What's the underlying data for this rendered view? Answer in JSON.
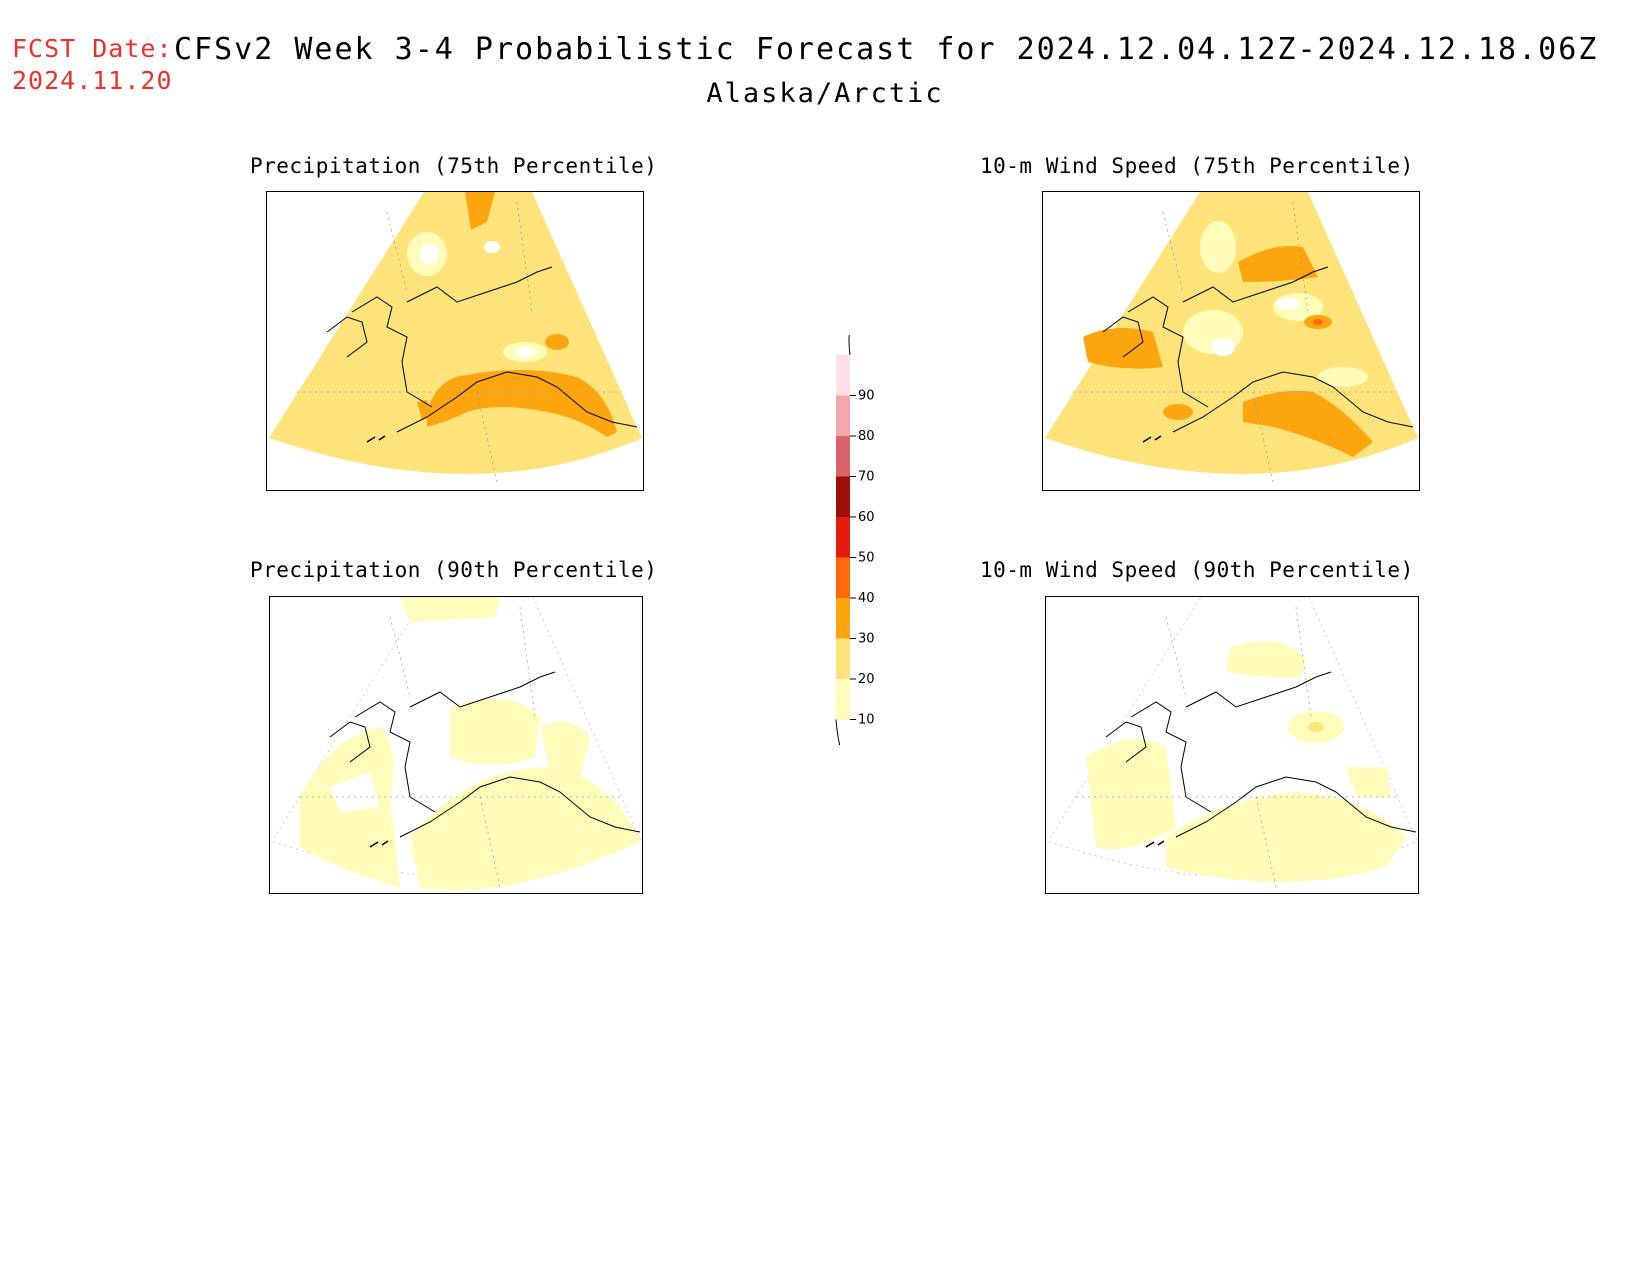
{
  "header": {
    "fcst_label": "FCST Date:",
    "fcst_date": "2024.11.20",
    "title": "CFSv2 Week 3-4 Probabilistic Forecast for 2024.12.04.12Z-2024.12.18.06Z",
    "region": "Alaska/Arctic"
  },
  "panels": [
    {
      "id": "precip75",
      "title": "Precipitation (75th Percentile)"
    },
    {
      "id": "wind75",
      "title": "10-m Wind Speed (75th Percentile)"
    },
    {
      "id": "precip90",
      "title": "Precipitation (90th Percentile)"
    },
    {
      "id": "wind90",
      "title": "10-m Wind Speed (90th Percentile)"
    }
  ],
  "colorbar": {
    "levels": [
      "10",
      "20",
      "30",
      "40",
      "50",
      "60",
      "70",
      "80",
      "90"
    ],
    "colors": [
      "#fffcba",
      "#fde37a",
      "#fca50e",
      "#fd6a07",
      "#e41c0b",
      "#a00e07",
      "#d9646a",
      "#f4a7aa",
      "#fde0e3"
    ]
  },
  "colors": {
    "fcst_text": "#e8322c",
    "light_yellow": "#fffcba",
    "yellow": "#fde37a",
    "orange": "#fca50e",
    "dark_orange": "#fd6a07"
  }
}
